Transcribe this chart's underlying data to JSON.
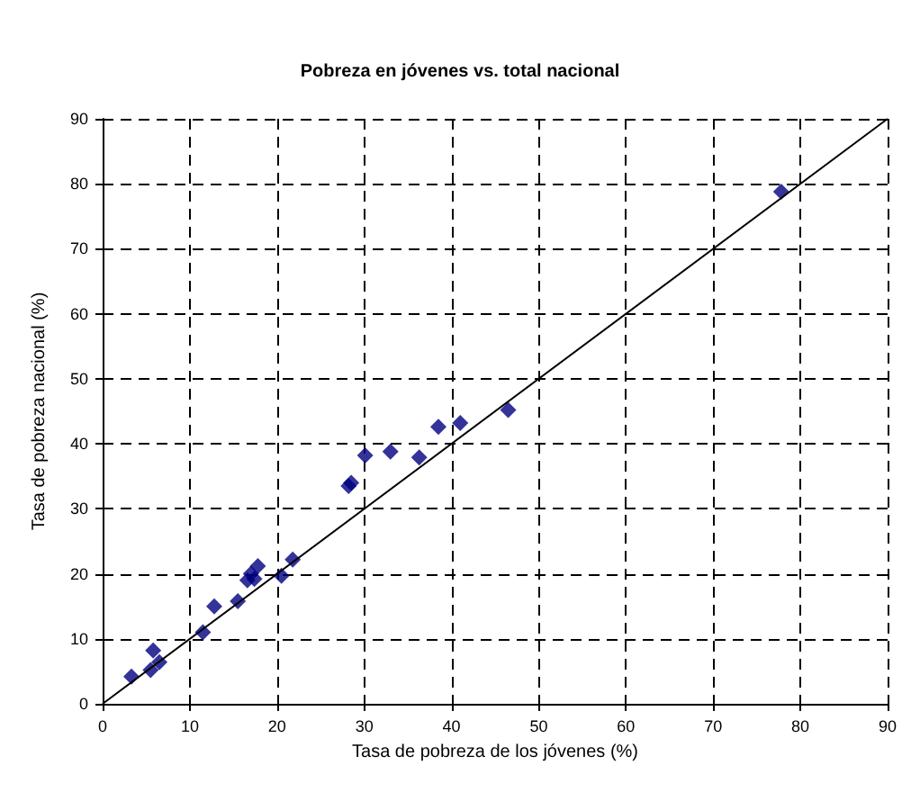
{
  "chart_data": {
    "type": "scatter",
    "title": "Pobreza en jóvenes vs. total nacional",
    "xlabel": "Tasa de pobreza de los jóvenes (%)",
    "ylabel": "Tasa de pobreza nacional (%)",
    "xlim": [
      0,
      90
    ],
    "ylim": [
      0,
      90
    ],
    "xticks": [
      0,
      10,
      20,
      30,
      40,
      50,
      60,
      70,
      80,
      90
    ],
    "yticks": [
      0,
      10,
      20,
      30,
      40,
      50,
      60,
      70,
      80,
      90
    ],
    "grid": true,
    "marker": "diamond",
    "series": [
      {
        "color": "#000080",
        "x": [
          3.3,
          5.5,
          5.8,
          6.5,
          11.5,
          12.8,
          15.5,
          16.6,
          17.0,
          17.4,
          17.8,
          20.5,
          21.8,
          28.2,
          28.5,
          30.1,
          33.0,
          36.3,
          38.5,
          41.0,
          46.5,
          77.8
        ],
        "values": [
          4.2,
          5.2,
          8.2,
          6.4,
          11.0,
          15.0,
          15.8,
          19.0,
          20.0,
          19.2,
          21.2,
          19.7,
          22.2,
          33.5,
          34.0,
          38.2,
          38.8,
          37.9,
          42.6,
          43.2,
          45.2,
          78.8
        ]
      },
      {
        "type": "line",
        "color": "#000000",
        "marker": "none",
        "line_style": "solid",
        "x": [
          0,
          90
        ],
        "values": [
          0,
          90
        ]
      }
    ]
  }
}
